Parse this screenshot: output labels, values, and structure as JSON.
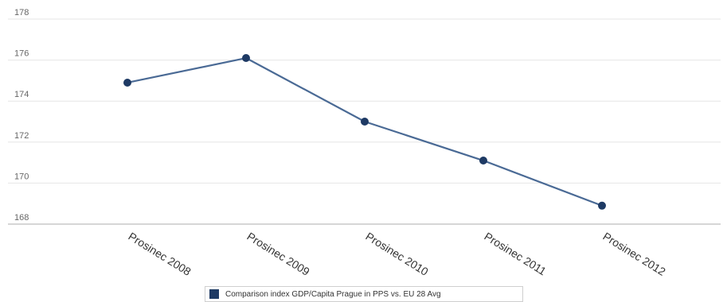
{
  "chart_data": {
    "type": "line",
    "title": "",
    "xlabel": "",
    "ylabel": "",
    "categories": [
      "Prosinec 2008",
      "Prosinec 2009",
      "Prosinec 2010",
      "Prosinec 2011",
      "Prosinec 2012"
    ],
    "y_ticks": [
      "168",
      "170",
      "172",
      "174",
      "176",
      "178"
    ],
    "ylim": [
      168,
      178
    ],
    "grid": true,
    "legend_position": "bottom",
    "series": [
      {
        "name": "Comparison index GDP/Capita Prague in PPS vs. EU 28 Avg",
        "values": [
          174.9,
          176.1,
          173.0,
          171.1,
          168.9
        ],
        "color": "#1e3a64",
        "line_color": "#4a6a95"
      }
    ]
  }
}
